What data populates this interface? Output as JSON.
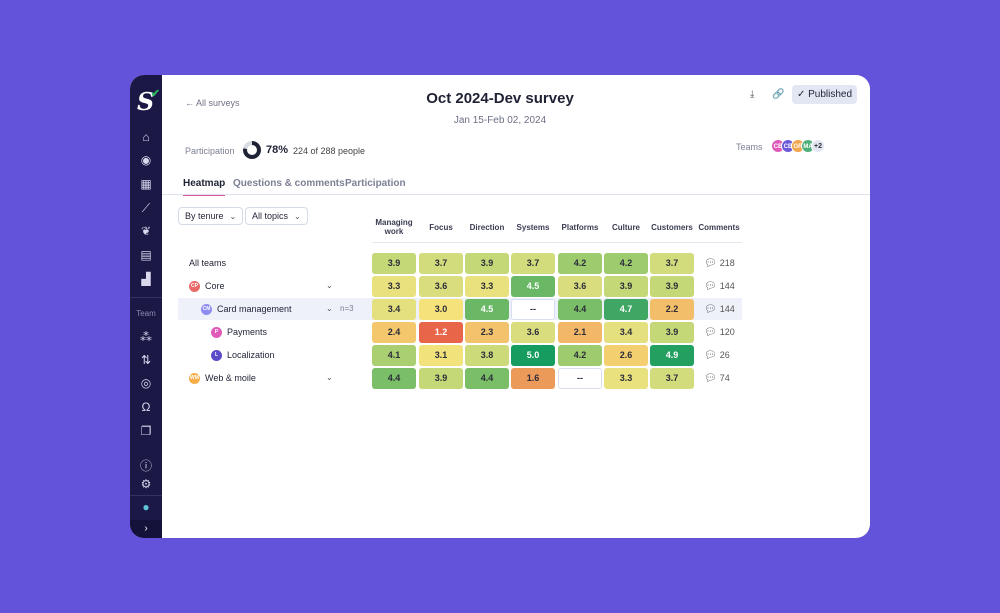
{
  "sidebar": {
    "section_label": "Team",
    "icons": [
      "home-icon",
      "target-icon",
      "grid-icon",
      "trend-icon",
      "leaf-icon",
      "calculator-icon",
      "bar-chart-icon",
      "nodes-icon",
      "git-compare-icon",
      "radar-icon",
      "refresh-person-icon",
      "windows-icon",
      "help-icon",
      "settings-icon",
      "user-avatar",
      "chevron-right-icon"
    ]
  },
  "header": {
    "back_label": "All surveys",
    "title": "Oct 2024-Dev survey",
    "date_range": "Jan 15-Feb 02, 2024",
    "published_label": "Published"
  },
  "participation": {
    "label": "Participation",
    "percent": "78%",
    "value": 0.78,
    "count_text": "224 of 288 people"
  },
  "teams": {
    "label": "Teams",
    "avatars": [
      {
        "initials": "CB",
        "color": "#e05bb8"
      },
      {
        "initials": "CB",
        "color": "#6a5ad8"
      },
      {
        "initials": "GR",
        "color": "#f2a54a"
      },
      {
        "initials": "MA",
        "color": "#4db07a"
      }
    ],
    "more": "+2"
  },
  "tabs": [
    "Heatmap",
    "Questions & comments",
    "Participation"
  ],
  "filters": {
    "group_by": "By tenure",
    "topics": "All topics"
  },
  "chart_data": {
    "type": "heatmap",
    "columns": [
      "Managing work",
      "Focus",
      "Direction",
      "Systems",
      "Platforms",
      "Culture",
      "Customers"
    ],
    "comments_header": "Comments",
    "rows": [
      {
        "label": "All teams",
        "values": [
          3.9,
          3.7,
          3.9,
          3.7,
          4.2,
          4.2,
          3.7
        ],
        "comments": 218
      },
      {
        "label": "Core",
        "initials": "CP",
        "color": "#ea6a6a",
        "values": [
          3.3,
          3.6,
          3.3,
          4.5,
          3.6,
          3.9,
          3.9
        ],
        "comments": 144
      },
      {
        "label": "Card management",
        "initials": "CM",
        "color": "#8e8cf0",
        "n": "n=3",
        "values": [
          3.4,
          3.0,
          4.5,
          null,
          4.4,
          4.7,
          2.2
        ],
        "comments": 144
      },
      {
        "label": "Payments",
        "initials": "P",
        "color": "#e05bb8",
        "values": [
          2.4,
          1.2,
          2.3,
          3.6,
          2.1,
          3.4,
          3.9
        ],
        "comments": 120
      },
      {
        "label": "Localization",
        "initials": "L",
        "color": "#5b4bc8",
        "values": [
          4.1,
          3.1,
          3.8,
          5.0,
          4.2,
          2.6,
          4.9
        ],
        "comments": 26
      },
      {
        "label": "Web & moile",
        "initials": "WM",
        "color": "#f6ae4a",
        "values": [
          4.4,
          3.9,
          4.4,
          1.6,
          null,
          3.3,
          3.7
        ],
        "comments": 74
      }
    ],
    "missing_label": "--",
    "scale": [
      1,
      5
    ]
  }
}
